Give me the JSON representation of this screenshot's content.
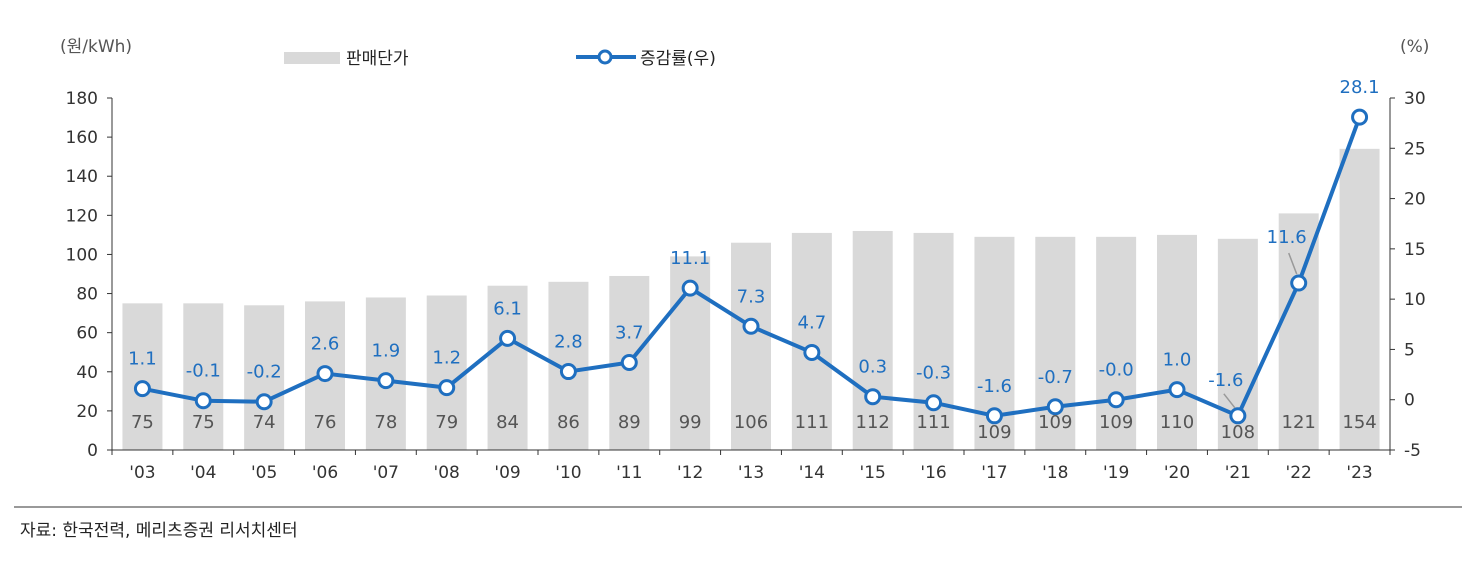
{
  "chart_data": {
    "type": "bar+line",
    "categories": [
      "'03",
      "'04",
      "'05",
      "'06",
      "'07",
      "'08",
      "'09",
      "'10",
      "'11",
      "'12",
      "'13",
      "'14",
      "'15",
      "'16",
      "'17",
      "'18",
      "'19",
      "'20",
      "'21",
      "'22",
      "'23"
    ],
    "series": [
      {
        "name": "판매단가",
        "type": "bar",
        "axis": "left",
        "color": "#d9d9d9",
        "values": [
          75,
          75,
          74,
          76,
          78,
          79,
          84,
          86,
          89,
          99,
          106,
          111,
          112,
          111,
          109,
          109,
          109,
          110,
          108,
          121,
          154
        ]
      },
      {
        "name": "증감률(우)",
        "type": "line",
        "axis": "right",
        "color": "#1f6fc0",
        "values": [
          1.1,
          -0.1,
          -0.2,
          2.6,
          1.9,
          1.2,
          6.1,
          2.8,
          3.7,
          11.1,
          7.3,
          4.7,
          0.3,
          -0.3,
          -1.6,
          -0.7,
          -0.0,
          1.0,
          -1.6,
          11.6,
          28.1
        ],
        "labels": [
          "1.1",
          "-0.1",
          "-0.2",
          "2.6",
          "1.9",
          "1.2",
          "6.1",
          "2.8",
          "3.7",
          "11.1",
          "7.3",
          "4.7",
          "0.3",
          "-0.3",
          "-1.6",
          "-0.7",
          "-0.0",
          "1.0",
          "-1.6",
          "11.6",
          "28.1"
        ]
      }
    ],
    "left_axis": {
      "unit_label": "(원/kWh)",
      "range": [
        0,
        180
      ],
      "ticks": [
        0,
        20,
        40,
        60,
        80,
        100,
        120,
        140,
        160,
        180
      ]
    },
    "right_axis": {
      "unit_label": "(%)",
      "range": [
        -5,
        30
      ],
      "ticks": [
        -5,
        0,
        5,
        10,
        15,
        20,
        25,
        30
      ]
    },
    "legend": {
      "placement": "top",
      "items": [
        "판매단가",
        "증감률(우)"
      ]
    },
    "grid": false
  },
  "source": "자료:  한국전력, 메리츠증권 리서치센터"
}
